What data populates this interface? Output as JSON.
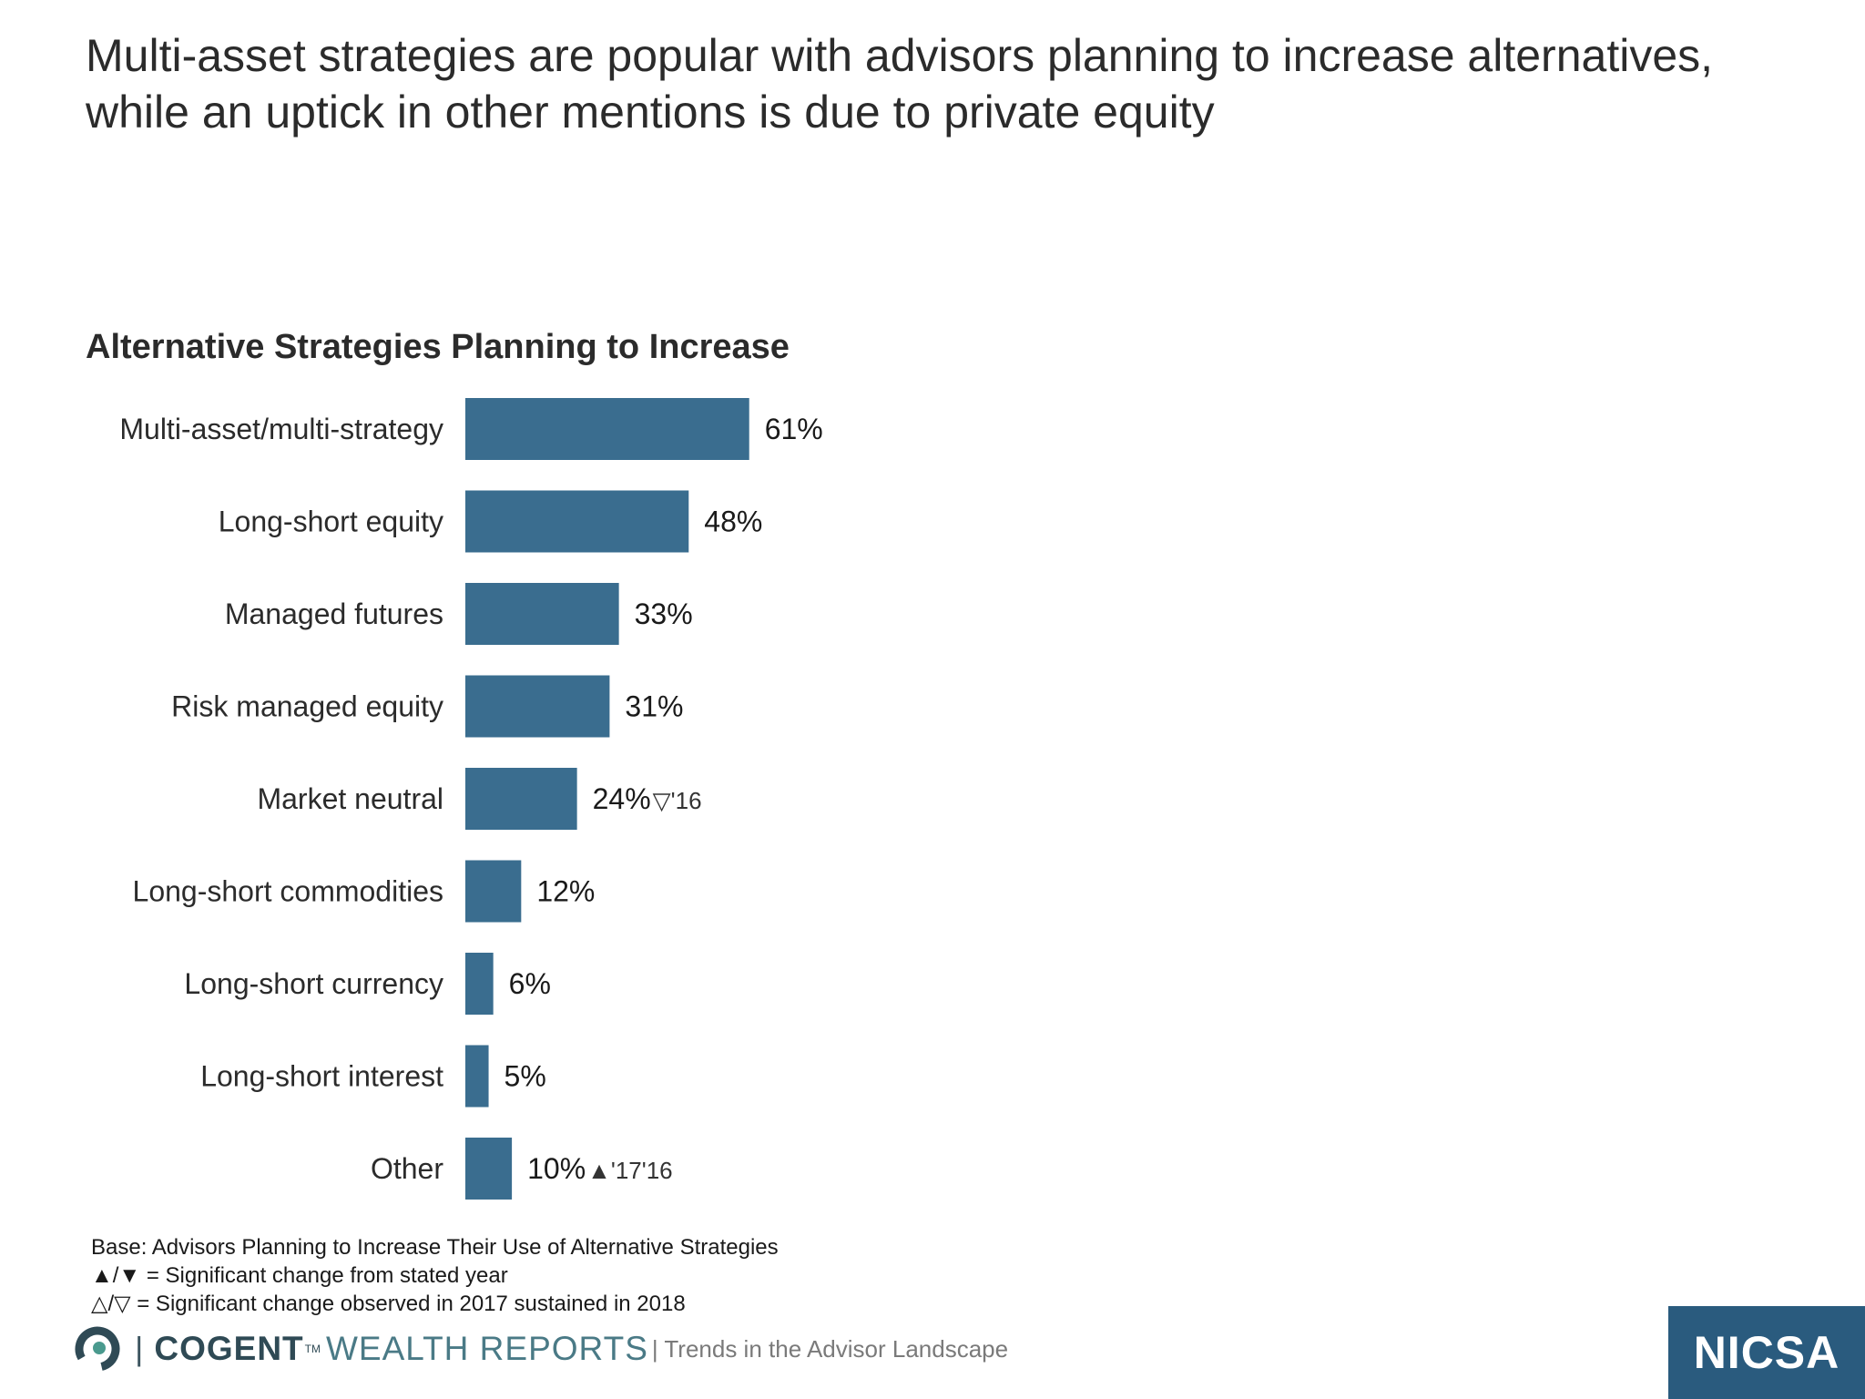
{
  "headline": {
    "line1": "Multi-asset strategies are popular with advisors planning to increase alternatives,",
    "line2": "while an uptick in other mentions is due to private equity"
  },
  "chart_data": {
    "type": "bar",
    "orientation": "horizontal",
    "title": "Alternative Strategies Planning to Increase",
    "categories": [
      "Multi-asset/multi-strategy",
      "Long-short equity",
      "Managed futures",
      "Risk managed equity",
      "Market neutral",
      "Long-short commodities",
      "Long-short currency",
      "Long-short interest",
      "Other"
    ],
    "values": [
      61,
      48,
      33,
      31,
      24,
      12,
      6,
      5,
      10
    ],
    "value_labels": [
      "61%",
      "48%",
      "33%",
      "31%",
      "24%",
      "12%",
      "6%",
      "5%",
      "10%"
    ],
    "markers": [
      "",
      "",
      "",
      "",
      "▽'16",
      "",
      "",
      "",
      "▲'17'16"
    ],
    "bar_color": "#3a6d8f",
    "grid": false,
    "legend": "none"
  },
  "notes": {
    "base": "Base: Advisors Planning to Increase Their Use of Alternative Strategies",
    "legend1": "▲/▼ = Significant change from stated year",
    "legend2": "△/▽ = Significant change observed in 2017 sustained in 2018"
  },
  "footer": {
    "brand_main": "COGENT",
    "brand_tm": "TM",
    "brand_sub": "WEALTH REPORTS",
    "separator": "|",
    "tagline": "| Trends in the Advisor Landscape",
    "logo": "NICSA"
  },
  "colors": {
    "accent": "#3a6d8f",
    "logo_bg": "#2a5b7e"
  }
}
